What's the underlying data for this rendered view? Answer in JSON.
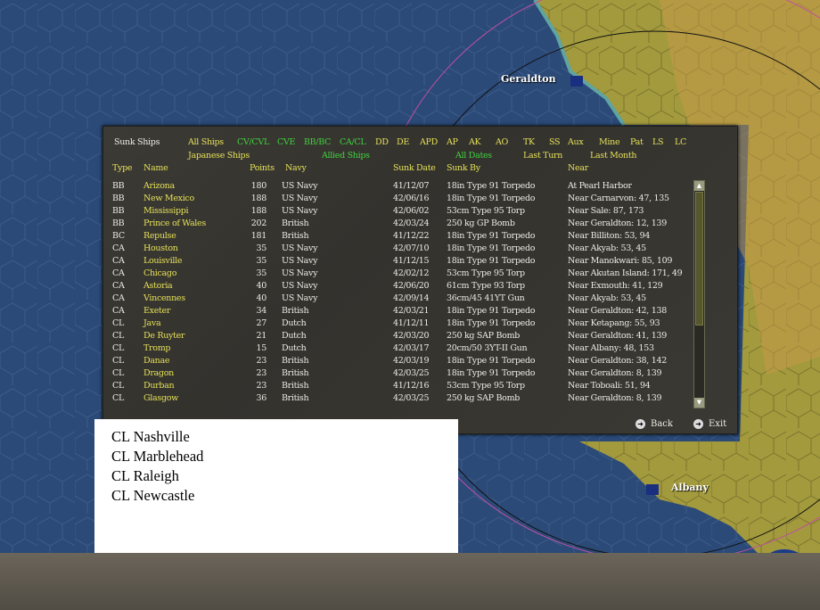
{
  "map": {
    "cities": [
      "Geraldton",
      "Albany"
    ],
    "colors": {
      "ocean": "#2b4a78",
      "land": "#a29a3c",
      "hex_line": "#3d5c8a"
    }
  },
  "panel": {
    "title": "Sunk Ships",
    "filters_row1": [
      {
        "label": "All Ships",
        "active": false
      },
      {
        "label": "CV/CVL",
        "active": true
      },
      {
        "label": "CVE",
        "active": true
      },
      {
        "label": "BB/BC",
        "active": true
      },
      {
        "label": "CA/CL",
        "active": true
      },
      {
        "label": "DD",
        "active": false
      },
      {
        "label": "DE",
        "active": false
      },
      {
        "label": "APD",
        "active": false
      },
      {
        "label": "AP",
        "active": false
      },
      {
        "label": "AK",
        "active": false
      },
      {
        "label": "AO",
        "active": false
      },
      {
        "label": "TK",
        "active": false
      },
      {
        "label": "SS",
        "active": false
      },
      {
        "label": "Aux",
        "active": false
      },
      {
        "label": "Mine",
        "active": false
      },
      {
        "label": "Pat",
        "active": false
      },
      {
        "label": "LS",
        "active": false
      },
      {
        "label": "LC",
        "active": false
      }
    ],
    "filters_row2": [
      {
        "label": "Japanese Ships",
        "active": false
      },
      {
        "label": "Allied Ships",
        "active": true
      },
      {
        "label": "All Dates",
        "active": true
      },
      {
        "label": "Last Turn",
        "active": false
      },
      {
        "label": "Last Month",
        "active": false
      }
    ],
    "columns": [
      "Type",
      "Name",
      "Points",
      "Navy",
      "Sunk Date",
      "Sunk By",
      "Near"
    ],
    "rows": [
      [
        "BB",
        "Arizona",
        "180",
        "US Navy",
        "41/12/07",
        "18in Type 91 Torpedo",
        "At Pearl Harbor"
      ],
      [
        "BB",
        "New Mexico",
        "188",
        "US Navy",
        "42/06/16",
        "18in Type 91 Torpedo",
        "Near Carnarvon: 47, 135"
      ],
      [
        "BB",
        "Mississippi",
        "188",
        "US Navy",
        "42/06/02",
        "53cm Type 95 Torp",
        "Near Sale: 87, 173"
      ],
      [
        "BB",
        "Prince of Wales",
        "202",
        "British",
        "42/03/24",
        "250 kg GP Bomb",
        "Near Geraldton: 12, 139"
      ],
      [
        "BC",
        "Repulse",
        "181",
        "British",
        "41/12/22",
        "18in Type 91 Torpedo",
        "Near Billiton: 53, 94"
      ],
      [
        "CA",
        "Houston",
        "35",
        "US Navy",
        "42/07/10",
        "18in Type 91 Torpedo",
        "Near Akyab: 53, 45"
      ],
      [
        "CA",
        "Louisville",
        "35",
        "US Navy",
        "41/12/15",
        "18in Type 91 Torpedo",
        "Near Manokwari: 85, 109"
      ],
      [
        "CA",
        "Chicago",
        "35",
        "US Navy",
        "42/02/12",
        "53cm Type 95 Torp",
        "Near Akutan Island: 171, 49"
      ],
      [
        "CA",
        "Astoria",
        "40",
        "US Navy",
        "42/06/20",
        "61cm Type 93 Torp",
        "Near Exmouth: 41, 129"
      ],
      [
        "CA",
        "Vincennes",
        "40",
        "US Navy",
        "42/09/14",
        "36cm/45 41YT Gun",
        "Near Akyab: 53, 45"
      ],
      [
        "CA",
        "Exeter",
        "34",
        "British",
        "42/03/21",
        "18in Type 91 Torpedo",
        "Near Geraldton: 42, 138"
      ],
      [
        "CL",
        "Java",
        "27",
        "Dutch",
        "41/12/11",
        "18in Type 91 Torpedo",
        "Near Ketapang: 55, 93"
      ],
      [
        "CL",
        "De Ruyter",
        "21",
        "Dutch",
        "42/03/20",
        "250 kg SAP Bomb",
        "Near Geraldton: 41, 139"
      ],
      [
        "CL",
        "Tromp",
        "15",
        "Dutch",
        "42/03/17",
        "20cm/50 3YT-II Gun",
        "Near Albany: 48, 153"
      ],
      [
        "CL",
        "Danae",
        "23",
        "British",
        "42/03/19",
        "18in Type 91 Torpedo",
        "Near Geraldton: 38, 142"
      ],
      [
        "CL",
        "Dragon",
        "23",
        "British",
        "42/03/25",
        "18in Type 91 Torpedo",
        "Near Geraldton: 8, 139"
      ],
      [
        "CL",
        "Durban",
        "23",
        "British",
        "41/12/16",
        "53cm Type 95 Torp",
        "Near Toboali: 51, 94"
      ],
      [
        "CL",
        "Glasgow",
        "36",
        "British",
        "42/03/25",
        "250 kg SAP Bomb",
        "Near Geraldton: 8, 139"
      ]
    ],
    "back_label": "Back",
    "exit_label": "Exit",
    "colors": {
      "active_filter": "#3fd23f",
      "inactive_filter": "#e4e05a"
    }
  },
  "notes": [
    "CL Nashville",
    "CL Marblehead",
    "CL Raleigh",
    "CL Newcastle"
  ]
}
